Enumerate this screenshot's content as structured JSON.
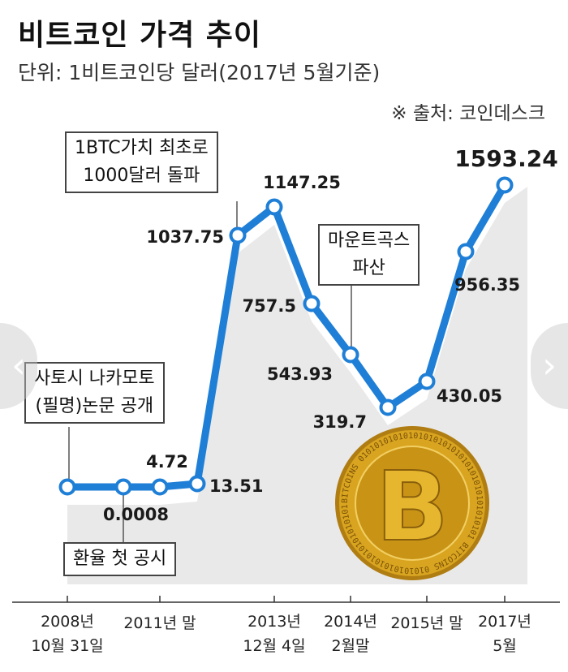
{
  "header": {
    "title": "비트코인 가격 추이",
    "subtitle": "단위: 1비트코인당 달러(2017년 5월기준)",
    "source": "※ 출처: 코인데스크"
  },
  "annotations": {
    "first_exchange": "환율 첫 공시",
    "satoshi_paper": "사토시 나카모토\n(필명)논문 공개",
    "btc_1000": "1BTC가치 최초로\n1000달러 돌파",
    "mtgox": "마운트곡스\n파산"
  },
  "navigation": {
    "prev_icon": "chevron-left-icon",
    "next_icon": "chevron-right-icon"
  },
  "colors": {
    "line": "#1f7fd6",
    "marker_fill": "#ffffff",
    "background_band": "#e9e9e9",
    "coin": "#d9a520"
  },
  "coin": {
    "symbol": "B",
    "ring_text": "BITCOINS 0101010101010101010101010101010101010101 BITCOINS 0101010101010101010101010101010101010101"
  },
  "chart_data": {
    "type": "line",
    "title": "비트코인 가격 추이",
    "subtitle": "단위: 1비트코인당 달러(2017년 5월기준)",
    "xlabel": "",
    "ylabel": "",
    "x_ticks": [
      {
        "label": "2008년\n10월 31일",
        "pos": 2008.83
      },
      {
        "label": "2011년 말",
        "pos": 2011.95
      },
      {
        "label": "2013년\n12월 4일",
        "pos": 2013.92
      },
      {
        "label": "2014년\n2월말",
        "pos": 2014.15
      },
      {
        "label": "2015년 말",
        "pos": 2015.95
      },
      {
        "label": "2017년\n5월",
        "pos": 2017.4
      }
    ],
    "series": [
      {
        "points": [
          {
            "t": 2008.83,
            "value": 0,
            "label": ""
          },
          {
            "t": 2009.8,
            "value": 0.0008,
            "label": "0.0008"
          },
          {
            "t": 2010.5,
            "value": 4.72,
            "label": "4.72"
          },
          {
            "t": 2011.95,
            "value": 13.51,
            "label": "13.51"
          },
          {
            "t": 2013.35,
            "value": 1037.75,
            "label": "1037.75"
          },
          {
            "t": 2013.92,
            "value": 1147.25,
            "label": "1147.25"
          },
          {
            "t": 2013.98,
            "value": 757.5,
            "label": "757.5"
          },
          {
            "t": 2014.15,
            "value": 543.93,
            "label": "543.93"
          },
          {
            "t": 2015.0,
            "value": 319.7,
            "label": "319.7"
          },
          {
            "t": 2015.95,
            "value": 430.05,
            "label": "430.05"
          },
          {
            "t": 2017.1,
            "value": 956.35,
            "label": "956.35"
          },
          {
            "t": 2017.4,
            "value": 1593.24,
            "label": "1593.24"
          }
        ]
      }
    ]
  }
}
